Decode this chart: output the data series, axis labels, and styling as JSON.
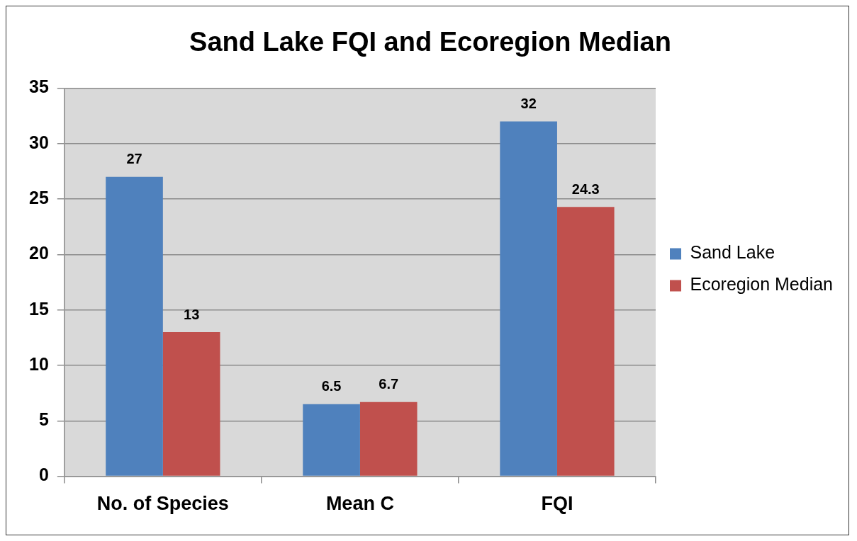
{
  "chart_data": {
    "type": "bar",
    "title": "Sand Lake FQI and Ecoregion Median",
    "categories": [
      "No. of Species",
      "Mean C",
      "FQI"
    ],
    "series": [
      {
        "name": "Sand Lake",
        "color": "#4f81bd",
        "values": [
          27,
          6.5,
          32
        ]
      },
      {
        "name": "Ecoregion Median",
        "color": "#c0504d",
        "values": [
          13,
          6.7,
          24.3
        ]
      }
    ],
    "ylim": [
      0,
      35
    ],
    "yticks": [
      0,
      5,
      10,
      15,
      20,
      25,
      30,
      35
    ],
    "grid": "y",
    "legend": "right",
    "data_labels": true
  }
}
